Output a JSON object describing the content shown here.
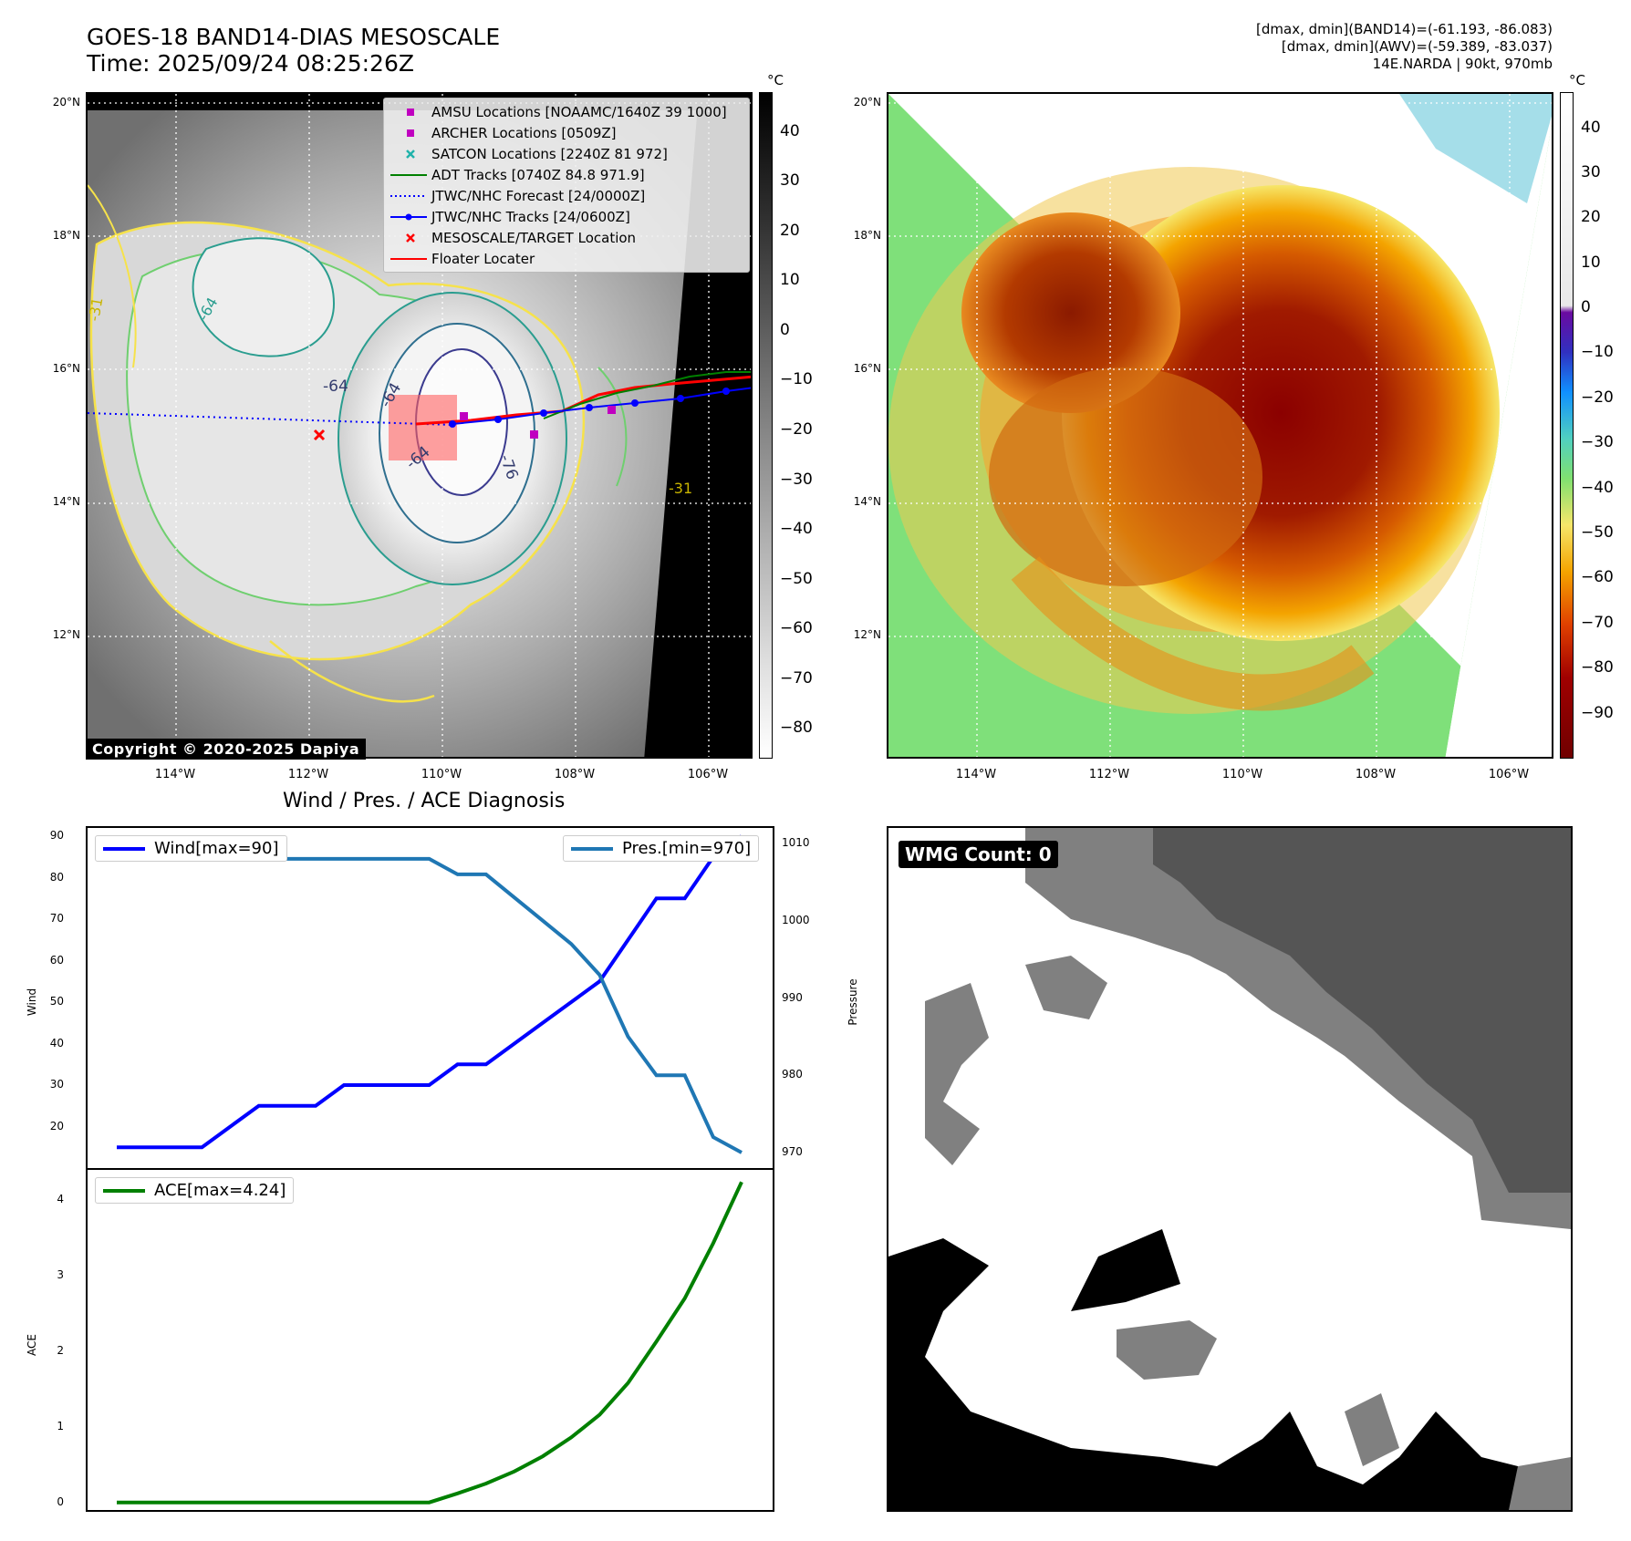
{
  "header": {
    "title_line1": "GOES-18 BAND14-DIAS MESOSCALE",
    "title_line2": "Time: 2025/09/24 08:25:26Z",
    "info_line1": "[dmax, dmin](BAND14)=(-61.193, -86.083)",
    "info_line2": "[dmax, dmin](AWV)=(-59.389, -83.037)",
    "info_line3": "14E.NARDA | 90kt, 970mb"
  },
  "map": {
    "lat_labels": [
      "20°N",
      "18°N",
      "16°N",
      "14°N",
      "12°N"
    ],
    "lon_labels": [
      "114°W",
      "112°W",
      "110°W",
      "108°W",
      "106°W"
    ],
    "contour_labels": [
      "-64",
      "-64",
      "-76",
      "-64",
      "-31",
      "-31",
      "-64"
    ],
    "legend": [
      {
        "label": "AMSU Locations [NOAAMC/1640Z 39 1000]",
        "color": "#c000c0",
        "marker": "square"
      },
      {
        "label": "ARCHER Locations [0509Z]",
        "color": "#c000c0",
        "marker": "square"
      },
      {
        "label": "SATCON Locations [2240Z 81 972]",
        "color": "#20b2aa",
        "marker": "x"
      },
      {
        "label": "ADT Tracks [0740Z 84.8 971.9]",
        "color": "#008000",
        "marker": "line"
      },
      {
        "label": "JTWC/NHC Forecast [24/0000Z]",
        "color": "#0000ff",
        "marker": "dotted"
      },
      {
        "label": "JTWC/NHC Tracks [24/0600Z]",
        "color": "#0000ff",
        "marker": "line-dot"
      },
      {
        "label": "MESOSCALE/TARGET Location",
        "color": "#ff0000",
        "marker": "x"
      },
      {
        "label": "Floater Locater",
        "color": "#ff0000",
        "marker": "line"
      }
    ],
    "copyright": "Copyright © 2020-2025 Dapiya"
  },
  "colorbar_left": {
    "unit": "°C",
    "ticks": [
      "40",
      "30",
      "20",
      "10",
      "0",
      "−10",
      "−20",
      "−30",
      "−40",
      "−50",
      "−60",
      "−70",
      "−80"
    ]
  },
  "colorbar_right": {
    "unit": "°C",
    "ticks": [
      "40",
      "30",
      "20",
      "10",
      "0",
      "−10",
      "−20",
      "−30",
      "−40",
      "−50",
      "−60",
      "−70",
      "−80",
      "−90"
    ]
  },
  "diagnosis": {
    "title": "Wind / Pres. / ACE Diagnosis",
    "wind_legend": "Wind[max=90]",
    "pres_legend": "Pres.[min=970]",
    "ace_legend": "ACE[max=4.24]",
    "wind_ylabel": "Wind",
    "pres_ylabel": "Pressure",
    "ace_ylabel": "ACE"
  },
  "wmg": {
    "label": "WMG Count: 0"
  },
  "chart_data": [
    {
      "type": "line",
      "title": "Wind / Pres. / ACE Diagnosis",
      "x": [
        0,
        1,
        2,
        3,
        4,
        5,
        6,
        7,
        8,
        9,
        10,
        11,
        12,
        13,
        14,
        15,
        16,
        17,
        18,
        19,
        20,
        21,
        22
      ],
      "series": [
        {
          "name": "Wind[max=90]",
          "axis": "left",
          "color": "#0000ff",
          "values": [
            15,
            15,
            15,
            15,
            20,
            25,
            25,
            25,
            30,
            30,
            30,
            30,
            35,
            35,
            40,
            45,
            50,
            55,
            65,
            75,
            75,
            85,
            90
          ]
        },
        {
          "name": "Pres.[min=970]",
          "axis": "right",
          "color": "#1f77b4",
          "values": [
            1010,
            1010,
            1010,
            1010,
            1008,
            1008,
            1008,
            1008,
            1008,
            1008,
            1008,
            1008,
            1006,
            1006,
            1003,
            1000,
            997,
            993,
            985,
            980,
            980,
            972,
            970
          ]
        }
      ],
      "ylabel": "Wind",
      "y2label": "Pressure",
      "ylim": [
        10,
        92
      ],
      "y2lim": [
        968,
        1012
      ],
      "yticks": [
        20,
        30,
        40,
        50,
        60,
        70,
        80,
        90
      ],
      "y2ticks": [
        970,
        980,
        990,
        1000,
        1010
      ]
    },
    {
      "type": "line",
      "x": [
        0,
        1,
        2,
        3,
        4,
        5,
        6,
        7,
        8,
        9,
        10,
        11,
        12,
        13,
        14,
        15,
        16,
        17,
        18,
        19,
        20,
        21,
        22
      ],
      "series": [
        {
          "name": "ACE[max=4.24]",
          "color": "#008000",
          "values": [
            0,
            0,
            0,
            0,
            0,
            0,
            0,
            0,
            0,
            0,
            0,
            0,
            0.12,
            0.25,
            0.41,
            0.61,
            0.86,
            1.16,
            1.58,
            2.13,
            2.7,
            3.43,
            4.24
          ]
        }
      ],
      "ylabel": "ACE",
      "ylim": [
        -0.1,
        4.4
      ],
      "yticks": [
        0,
        1,
        2,
        3,
        4
      ]
    }
  ]
}
